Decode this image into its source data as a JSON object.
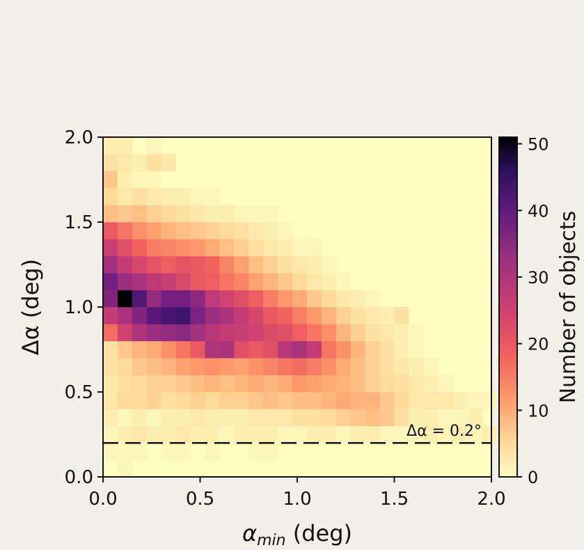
{
  "chart_data": {
    "type": "heatmap",
    "title": "",
    "xlabel": {
      "main": "α",
      "sub": "min",
      "unit": " (deg)"
    },
    "ylabel": "Δα (deg)",
    "xlim": [
      0.0,
      2.0
    ],
    "ylim": [
      0.0,
      2.0
    ],
    "xticks": [
      "0.0",
      "0.5",
      "1.0",
      "1.5",
      "2.0"
    ],
    "yticks": [
      "0.0",
      "0.5",
      "1.0",
      "1.5",
      "2.0"
    ],
    "bins": {
      "nx": 27,
      "ny": 20,
      "x_step": 0.075,
      "y_step": 0.1
    },
    "colormap": "magma_r",
    "colorbar": {
      "label": "Number of objects",
      "range": [
        0,
        51
      ],
      "ticks": [
        "0",
        "10",
        "20",
        "30",
        "40",
        "50"
      ]
    },
    "reference_line": {
      "y": 0.2,
      "label": "Δα = 0.2°",
      "style": "dashed"
    },
    "cells": [
      [
        0,
        1,
        0,
        0,
        0,
        0,
        0,
        0,
        0,
        0,
        0,
        0,
        0,
        0,
        0,
        0,
        0,
        0,
        0,
        0,
        0,
        0,
        0,
        0,
        0,
        0,
        0
      ],
      [
        1,
        1,
        1,
        0,
        1,
        1,
        0,
        1,
        0,
        0,
        1,
        1,
        0,
        0,
        0,
        0,
        0,
        0,
        0,
        0,
        0,
        0,
        0,
        0,
        0,
        0,
        0
      ],
      [
        1,
        2,
        3,
        2,
        2,
        3,
        2,
        2,
        1,
        2,
        2,
        2,
        1,
        1,
        2,
        2,
        1,
        2,
        2,
        1,
        1,
        1,
        2,
        1,
        2,
        1,
        2
      ],
      [
        2,
        1,
        2,
        1,
        2,
        2,
        3,
        2,
        2,
        2,
        3,
        3,
        3,
        4,
        4,
        5,
        6,
        7,
        8,
        7,
        4,
        2,
        2,
        1,
        1,
        0,
        0
      ],
      [
        3,
        5,
        5,
        6,
        4,
        5,
        6,
        5,
        6,
        6,
        7,
        8,
        7,
        8,
        8,
        9,
        10,
        9,
        9,
        7,
        5,
        3,
        3,
        3,
        2,
        1,
        1
      ],
      [
        3,
        4,
        5,
        6,
        6,
        7,
        8,
        9,
        8,
        9,
        10,
        9,
        10,
        12,
        11,
        10,
        9,
        8,
        6,
        5,
        4,
        3,
        2,
        1,
        0,
        0,
        0
      ],
      [
        4,
        5,
        7,
        8,
        9,
        11,
        12,
        13,
        12,
        11,
        13,
        14,
        16,
        17,
        15,
        13,
        10,
        8,
        6,
        4,
        3,
        2,
        1,
        0,
        0,
        0,
        0
      ],
      [
        4,
        7,
        9,
        10,
        13,
        16,
        20,
        30,
        31,
        22,
        20,
        22,
        29,
        31,
        27,
        16,
        13,
        9,
        6,
        4,
        2,
        1,
        0,
        0,
        0,
        0,
        0
      ],
      [
        17,
        25,
        30,
        33,
        34,
        35,
        32,
        29,
        27,
        26,
        25,
        23,
        22,
        19,
        16,
        13,
        9,
        6,
        4,
        3,
        2,
        1,
        0,
        0,
        0,
        0,
        0
      ],
      [
        27,
        31,
        36,
        41,
        43,
        44,
        37,
        33,
        31,
        27,
        24,
        20,
        18,
        15,
        12,
        9,
        6,
        4,
        3,
        2,
        1,
        0,
        0,
        0,
        0,
        0,
        0
      ],
      [
        36,
        51,
        42,
        34,
        38,
        38,
        35,
        28,
        25,
        22,
        19,
        15,
        12,
        10,
        7,
        5,
        3,
        2,
        1,
        0,
        0,
        0,
        0,
        0,
        0,
        0,
        0
      ],
      [
        38,
        33,
        31,
        28,
        26,
        23,
        20,
        19,
        16,
        14,
        11,
        9,
        7,
        5,
        3,
        2,
        1,
        0,
        0,
        0,
        0,
        0,
        0,
        0,
        0,
        0,
        0
      ],
      [
        32,
        27,
        24,
        21,
        19,
        21,
        20,
        18,
        14,
        11,
        8,
        6,
        4,
        3,
        2,
        1,
        0,
        0,
        0,
        0,
        0,
        0,
        0,
        0,
        0,
        0,
        0
      ],
      [
        26,
        22,
        18,
        15,
        14,
        13,
        12,
        10,
        8,
        6,
        4,
        3,
        2,
        1,
        1,
        0,
        0,
        0,
        0,
        0,
        0,
        0,
        0,
        0,
        0,
        0,
        0
      ],
      [
        20,
        16,
        13,
        11,
        9,
        8,
        7,
        6,
        5,
        4,
        3,
        2,
        1,
        0,
        0,
        0,
        0,
        0,
        0,
        0,
        0,
        0,
        0,
        0,
        0,
        0,
        0
      ],
      [
        8,
        7,
        8,
        6,
        5,
        4,
        3,
        2,
        2,
        1,
        1,
        1,
        0,
        0,
        0,
        0,
        0,
        0,
        0,
        0,
        0,
        0,
        0,
        0,
        0,
        0,
        0
      ],
      [
        5,
        3,
        4,
        3,
        2,
        2,
        1,
        1,
        0,
        0,
        0,
        0,
        0,
        0,
        0,
        0,
        0,
        0,
        0,
        0,
        0,
        0,
        0,
        0,
        0,
        0,
        0
      ],
      [
        7,
        2,
        1,
        1,
        0,
        0,
        0,
        0,
        0,
        0,
        0,
        0,
        0,
        0,
        0,
        0,
        0,
        0,
        0,
        0,
        0,
        0,
        0,
        0,
        0,
        0,
        0
      ],
      [
        4,
        3,
        2,
        4,
        3,
        0,
        0,
        0,
        0,
        0,
        0,
        0,
        0,
        0,
        0,
        0,
        0,
        0,
        0,
        0,
        0,
        0,
        0,
        0,
        0,
        0,
        0
      ],
      [
        2,
        2,
        0,
        1,
        0,
        0,
        0,
        0,
        0,
        0,
        0,
        0,
        0,
        0,
        0,
        0,
        0,
        0,
        0,
        0,
        0,
        0,
        0,
        0,
        0,
        0,
        0
      ]
    ],
    "outliers": [
      {
        "x": 1.5,
        "y": 0.9,
        "value": 4
      },
      {
        "x": 1.58,
        "y": 0.3,
        "value": 2
      },
      {
        "x": 1.88,
        "y": 0.3,
        "value": 2
      }
    ]
  }
}
